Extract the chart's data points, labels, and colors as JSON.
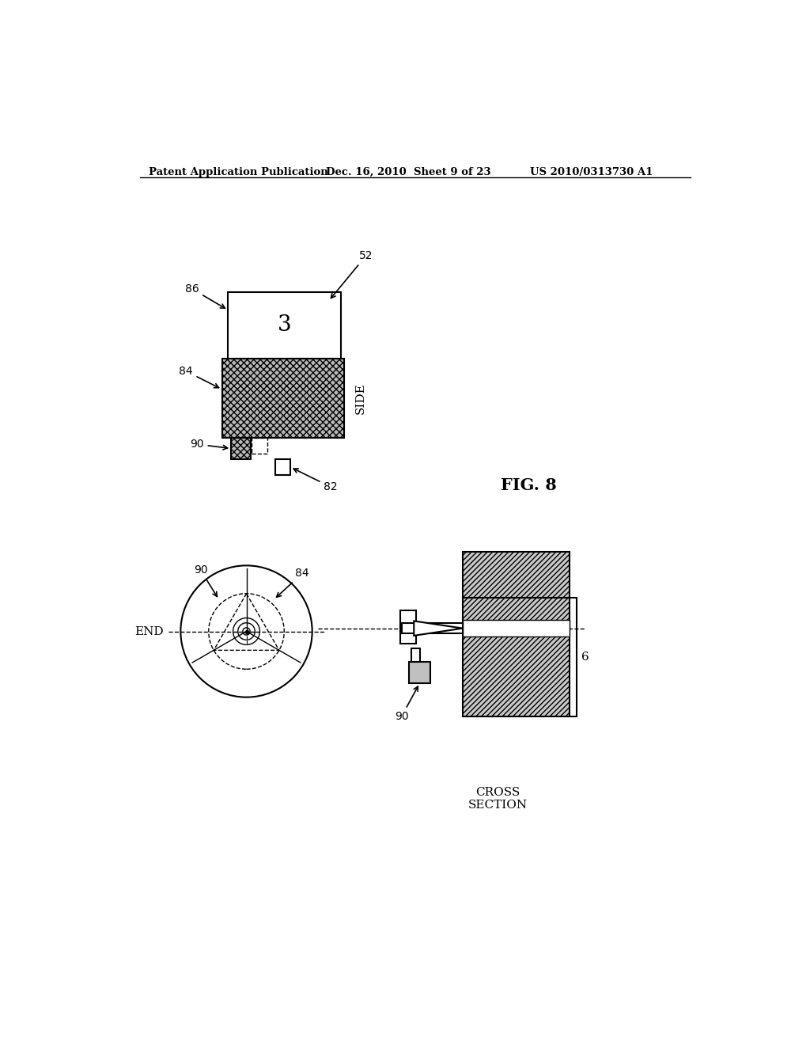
{
  "bg_color": "#ffffff",
  "header_left": "Patent Application Publication",
  "header_center": "Dec. 16, 2010  Sheet 9 of 23",
  "header_right": "US 2010/0313730 A1",
  "fig_label": "FIG. 8",
  "label_side": "SIDE",
  "label_end": "END",
  "label_cross": "CROSS\nSECTION"
}
